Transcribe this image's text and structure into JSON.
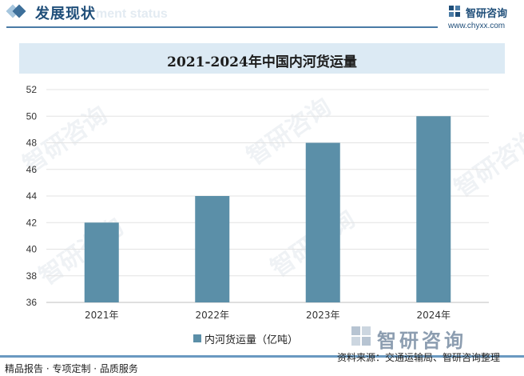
{
  "header": {
    "title": "发展现状",
    "subtitle": "ment status",
    "logo_text": "智研咨询",
    "logo_url": "www.chyxx.com"
  },
  "watermark": {
    "text": "智研咨询",
    "big_text": "智研咨询"
  },
  "chart_data": {
    "type": "bar",
    "title": "2021-2024年中国内河货运量",
    "categories": [
      "2021年",
      "2022年",
      "2023年",
      "2024年"
    ],
    "series": [
      {
        "name": "内河货运量（亿吨）",
        "values": [
          42,
          44,
          48,
          50
        ],
        "color": "#5b8fa8"
      }
    ],
    "ylim": [
      36,
      52
    ],
    "yticks": [
      36,
      38,
      40,
      42,
      44,
      46,
      48,
      50,
      52
    ],
    "xlabel": "",
    "ylabel": "",
    "grid": true,
    "legend_position": "bottom"
  },
  "footer": {
    "left": "精品报告 · 专项定制 · 品质服务",
    "right": "资料来源：交通运输局、智研咨询整理"
  }
}
